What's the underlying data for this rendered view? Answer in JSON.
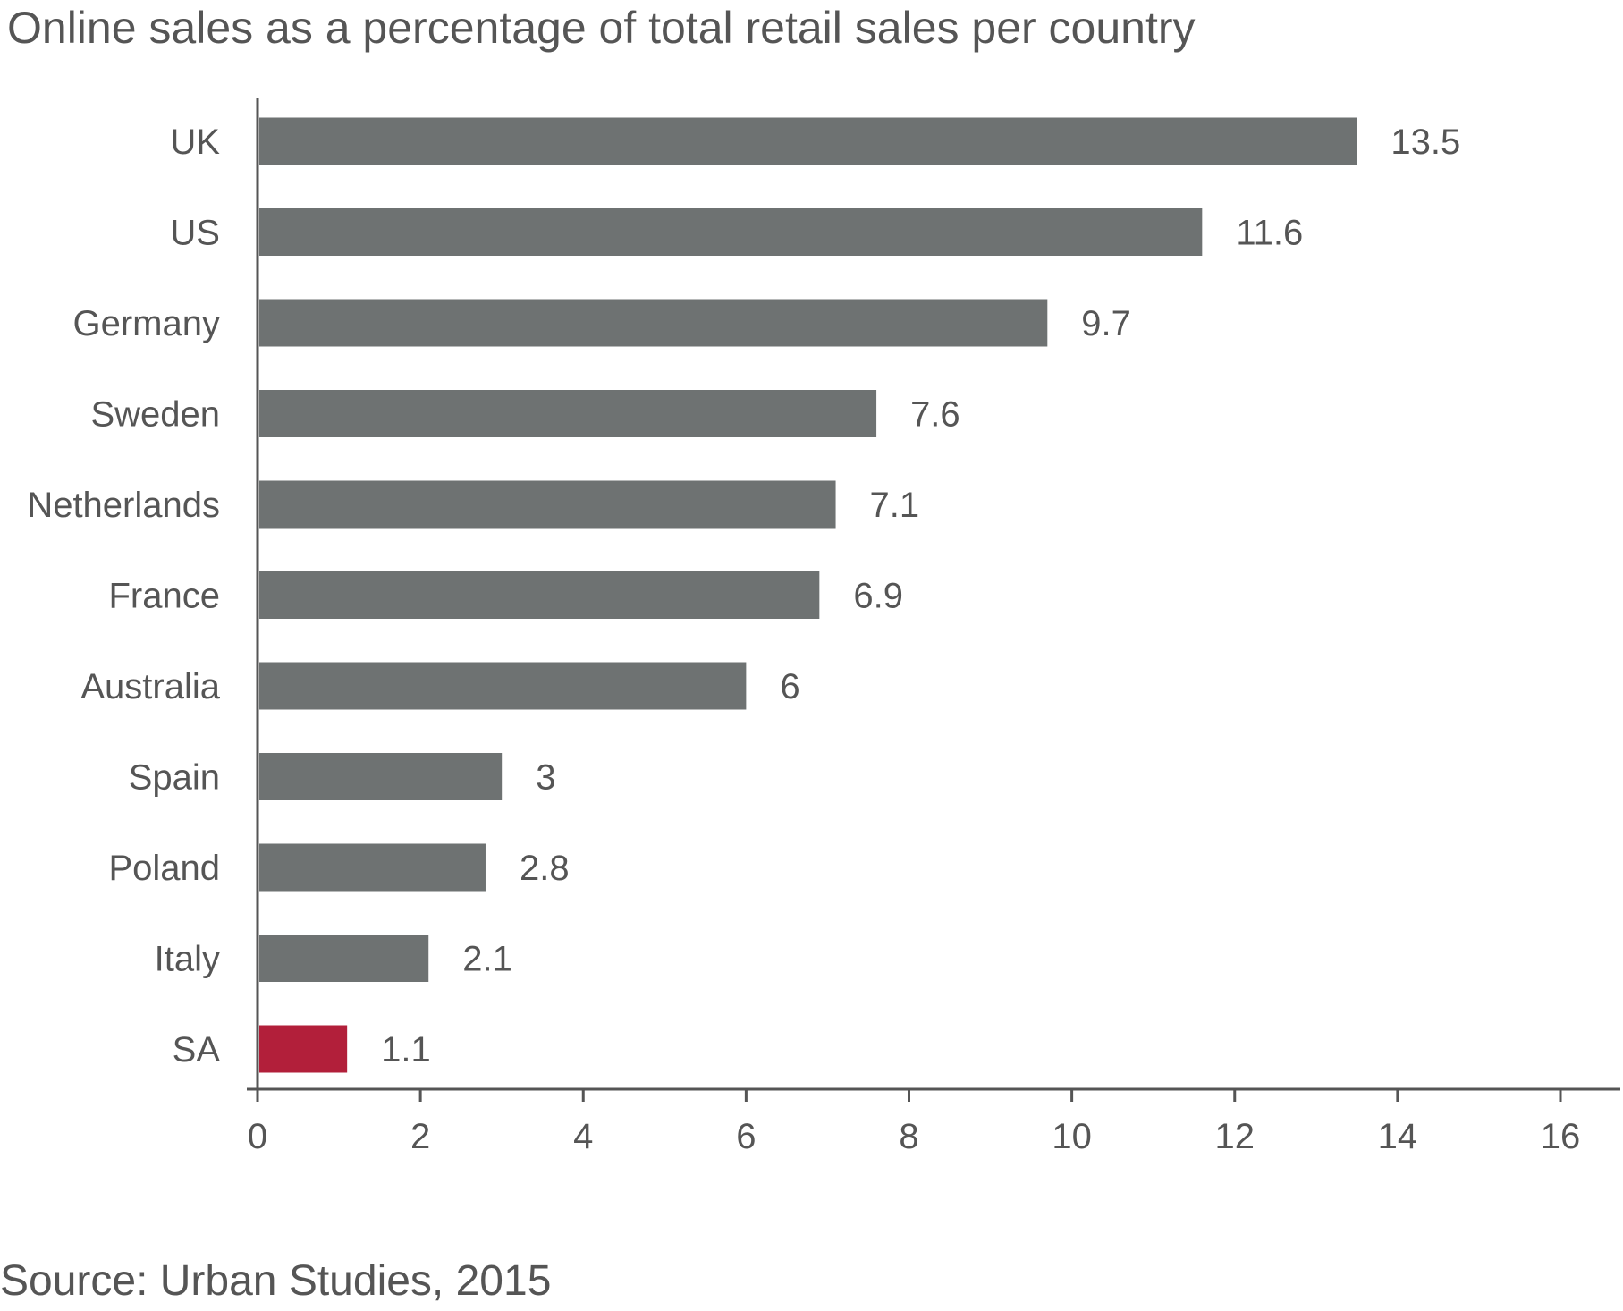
{
  "chart_data": {
    "type": "bar",
    "orientation": "horizontal",
    "title": "Online sales as a percentage of total retail sales per country",
    "source": "Source: Urban Studies, 2015",
    "categories": [
      "UK",
      "US",
      "Germany",
      "Sweden",
      "Netherlands",
      "France",
      "Australia",
      "Spain",
      "Poland",
      "Italy",
      "SA"
    ],
    "values": [
      13.5,
      11.6,
      9.7,
      7.6,
      7.1,
      6.9,
      6,
      3,
      2.8,
      2.1,
      1.1
    ],
    "value_labels": [
      "13.5",
      "11.6",
      "9.7",
      "7.6",
      "7.1",
      "6.9",
      "6",
      "3",
      "2.8",
      "2.1",
      "1.1"
    ],
    "xlim": [
      0,
      16
    ],
    "xticks": [
      "0",
      "2",
      "4",
      "6",
      "8",
      "10",
      "12",
      "14",
      "16"
    ],
    "grid": false,
    "bar_color": "#6e7272",
    "highlight": {
      "category": "SA",
      "color": "#b21f3a"
    },
    "axis_color": "#555555"
  }
}
